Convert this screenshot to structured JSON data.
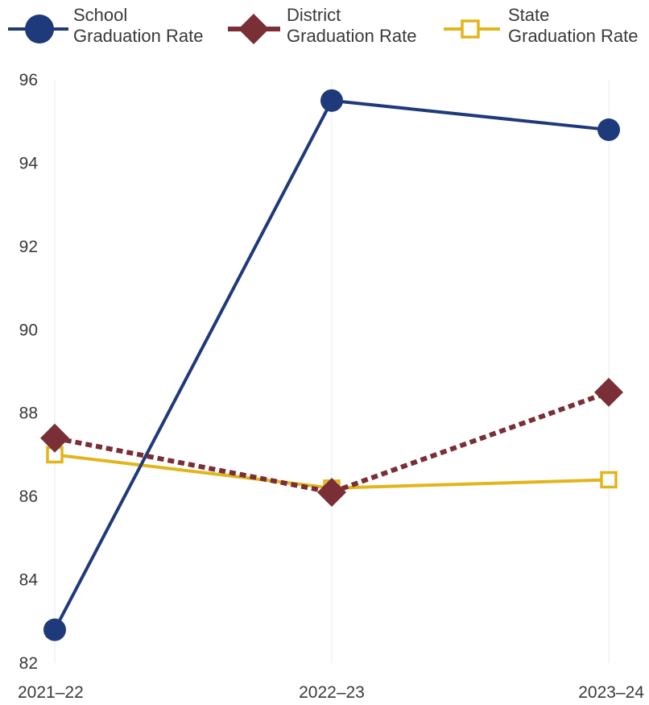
{
  "chart_data": {
    "type": "line",
    "title": "",
    "xlabel": "",
    "ylabel": "",
    "categories": [
      "2021–22",
      "2022–23",
      "2023–24"
    ],
    "ylim": [
      82,
      96
    ],
    "yticks": [
      82,
      84,
      86,
      88,
      90,
      92,
      94,
      96
    ],
    "grid": {
      "horizontal": false,
      "vertical": true
    },
    "legend_position": "top",
    "series": [
      {
        "name_lines": [
          "School",
          "Graduation Rate"
        ],
        "values": [
          82.8,
          95.5,
          94.8
        ],
        "color": "#1f3a7a",
        "marker": "circle",
        "line_style": "solid"
      },
      {
        "name_lines": [
          "District",
          "Graduation Rate"
        ],
        "values": [
          87.4,
          86.1,
          88.5
        ],
        "color": "#7a2e36",
        "marker": "diamond",
        "line_style": "dashed"
      },
      {
        "name_lines": [
          "State",
          "Graduation Rate"
        ],
        "values": [
          87.0,
          86.2,
          86.4
        ],
        "color": "#e2b51c",
        "marker": "square-open",
        "line_style": "solid"
      }
    ]
  }
}
